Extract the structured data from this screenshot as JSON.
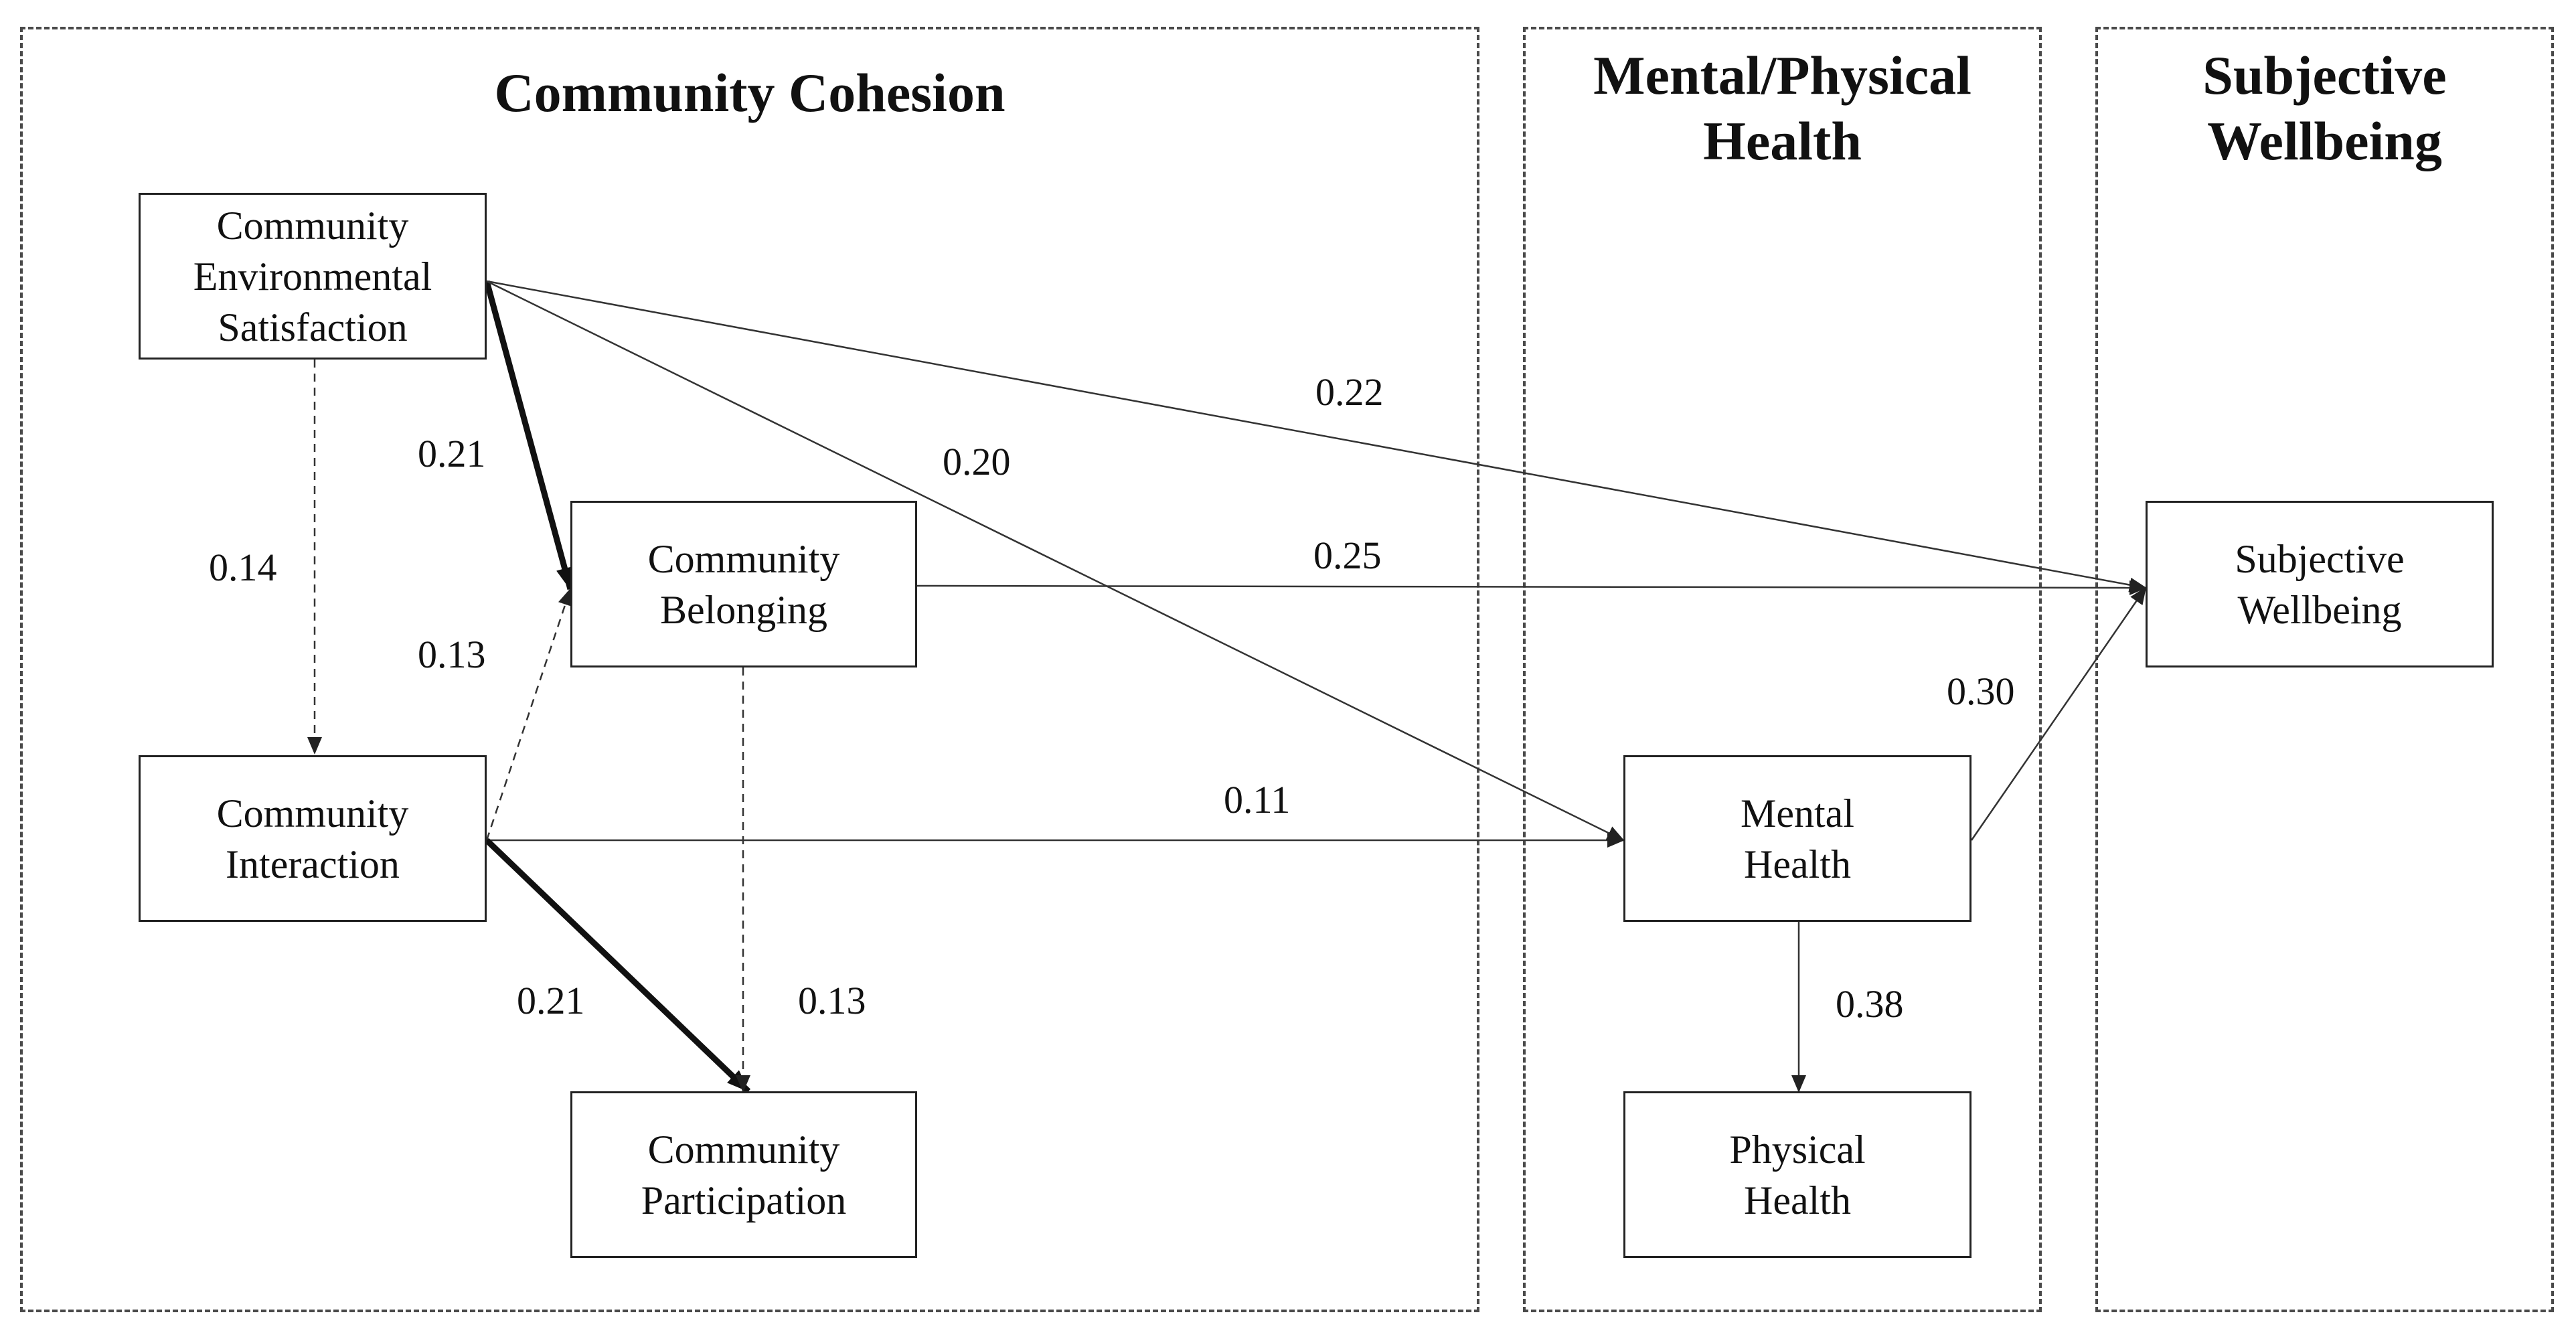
{
  "groups": {
    "community_cohesion": {
      "title": "Community Cohesion"
    },
    "mental_physical_health": {
      "title": "Mental/Physical\nHealth"
    },
    "subjective_wellbeing": {
      "title": "Subjective\nWellbeing"
    }
  },
  "nodes": {
    "environmental_satisfaction": "Community\nEnvironmental\nSatisfaction",
    "belonging": "Community\nBelonging",
    "interaction": "Community\nInteraction",
    "participation": "Community\nParticipation",
    "mental_health": "Mental\nHealth",
    "physical_health": "Physical\nHealth",
    "subjective_wellbeing": "Subjective\nWellbeing"
  },
  "paths": [
    {
      "id": "env-to-belonging",
      "from": "Community Environmental Satisfaction",
      "to": "Community Belonging",
      "coefficient": "0.21",
      "style": "bold"
    },
    {
      "id": "env-to-interaction",
      "from": "Community Environmental Satisfaction",
      "to": "Community Interaction",
      "coefficient": "0.14",
      "style": "dashed"
    },
    {
      "id": "env-to-mental",
      "from": "Community Environmental Satisfaction",
      "to": "Mental Health",
      "coefficient": "0.20",
      "style": "solid"
    },
    {
      "id": "env-to-wellbeing",
      "from": "Community Environmental Satisfaction",
      "to": "Subjective Wellbeing",
      "coefficient": "0.22",
      "style": "solid"
    },
    {
      "id": "interaction-to-belonging",
      "from": "Community Interaction",
      "to": "Community Belonging",
      "coefficient": "0.13",
      "style": "dashed"
    },
    {
      "id": "belonging-to-wellbeing",
      "from": "Community Belonging",
      "to": "Subjective Wellbeing",
      "coefficient": "0.25",
      "style": "solid"
    },
    {
      "id": "interaction-to-mental",
      "from": "Community Interaction",
      "to": "Mental Health",
      "coefficient": "0.11",
      "style": "solid"
    },
    {
      "id": "interaction-to-participation",
      "from": "Community Interaction",
      "to": "Community Participation",
      "coefficient": "0.21",
      "style": "bold"
    },
    {
      "id": "belonging-to-participation",
      "from": "Community Belonging",
      "to": "Community Participation",
      "coefficient": "0.13",
      "style": "dashed"
    },
    {
      "id": "mental-to-wellbeing",
      "from": "Mental Health",
      "to": "Subjective Wellbeing",
      "coefficient": "0.30",
      "style": "solid"
    },
    {
      "id": "mental-to-physical",
      "from": "Mental Health",
      "to": "Physical Health",
      "coefficient": "0.38",
      "style": "solid"
    }
  ],
  "colors": {
    "line": "#333333",
    "group_border": "#4a4a4a",
    "background": "#ffffff"
  }
}
